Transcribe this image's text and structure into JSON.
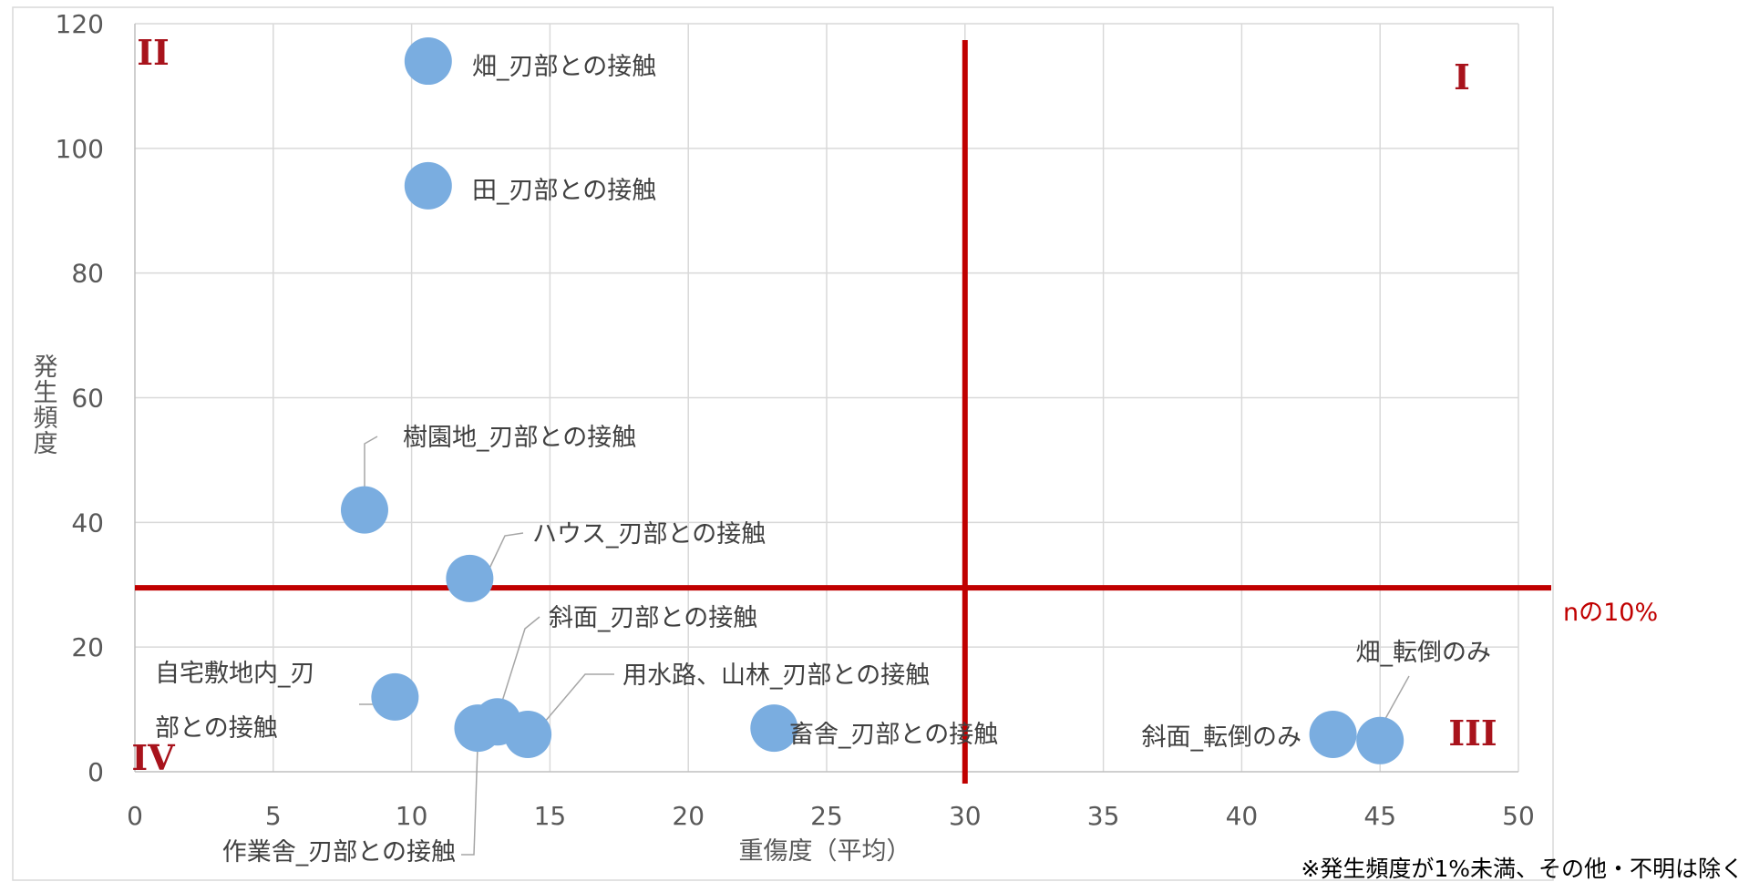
{
  "chart_data": {
    "type": "scatter",
    "xlabel": "重傷度（平均）",
    "ylabel": "発生頻度",
    "xlim": [
      0,
      50
    ],
    "ylim": [
      0,
      120
    ],
    "x_ticks": [
      "0",
      "5",
      "10",
      "15",
      "20",
      "25",
      "30",
      "35",
      "40",
      "45",
      "50"
    ],
    "y_ticks": [
      "0",
      "20",
      "40",
      "60",
      "80",
      "100",
      "120"
    ],
    "grid": true,
    "marker_color": "#7aade0",
    "reference_color": "#c00000",
    "points": [
      {
        "x": 10.6,
        "y": 114,
        "label": [
          "畑_刃部との接触"
        ]
      },
      {
        "x": 10.6,
        "y": 94,
        "label": [
          "田_刃部との接触"
        ]
      },
      {
        "x": 8.3,
        "y": 42,
        "label": [
          "樹園地_刃部との接触"
        ]
      },
      {
        "x": 12.1,
        "y": 31,
        "label": [
          "ハウス_刃部との接触"
        ]
      },
      {
        "x": 9.4,
        "y": 12,
        "label": [
          "自宅敷地内_刃",
          "部との接触"
        ]
      },
      {
        "x": 13.1,
        "y": 8,
        "label": [
          "斜面_刃部との接触"
        ]
      },
      {
        "x": 12.4,
        "y": 7,
        "label": [
          "作業舎_刃部との接触"
        ]
      },
      {
        "x": 14.2,
        "y": 6,
        "label": [
          "用水路、山林_刃部との接触"
        ]
      },
      {
        "x": 23.1,
        "y": 7,
        "label": [
          "畜舎_刃部との接触"
        ]
      },
      {
        "x": 43.3,
        "y": 6,
        "label": [
          "斜面_転倒のみ"
        ]
      },
      {
        "x": 45.0,
        "y": 5,
        "label": [
          "畑_転倒のみ"
        ]
      }
    ],
    "reference_lines": {
      "vertical_x": 30,
      "horizontal_y": 29.5,
      "horizontal_label": "nの10%"
    },
    "quadrant_labels": [
      "I",
      "II",
      "III",
      "IV"
    ],
    "footnote": "※発生頻度が1%未満、その他・不明は除く"
  }
}
